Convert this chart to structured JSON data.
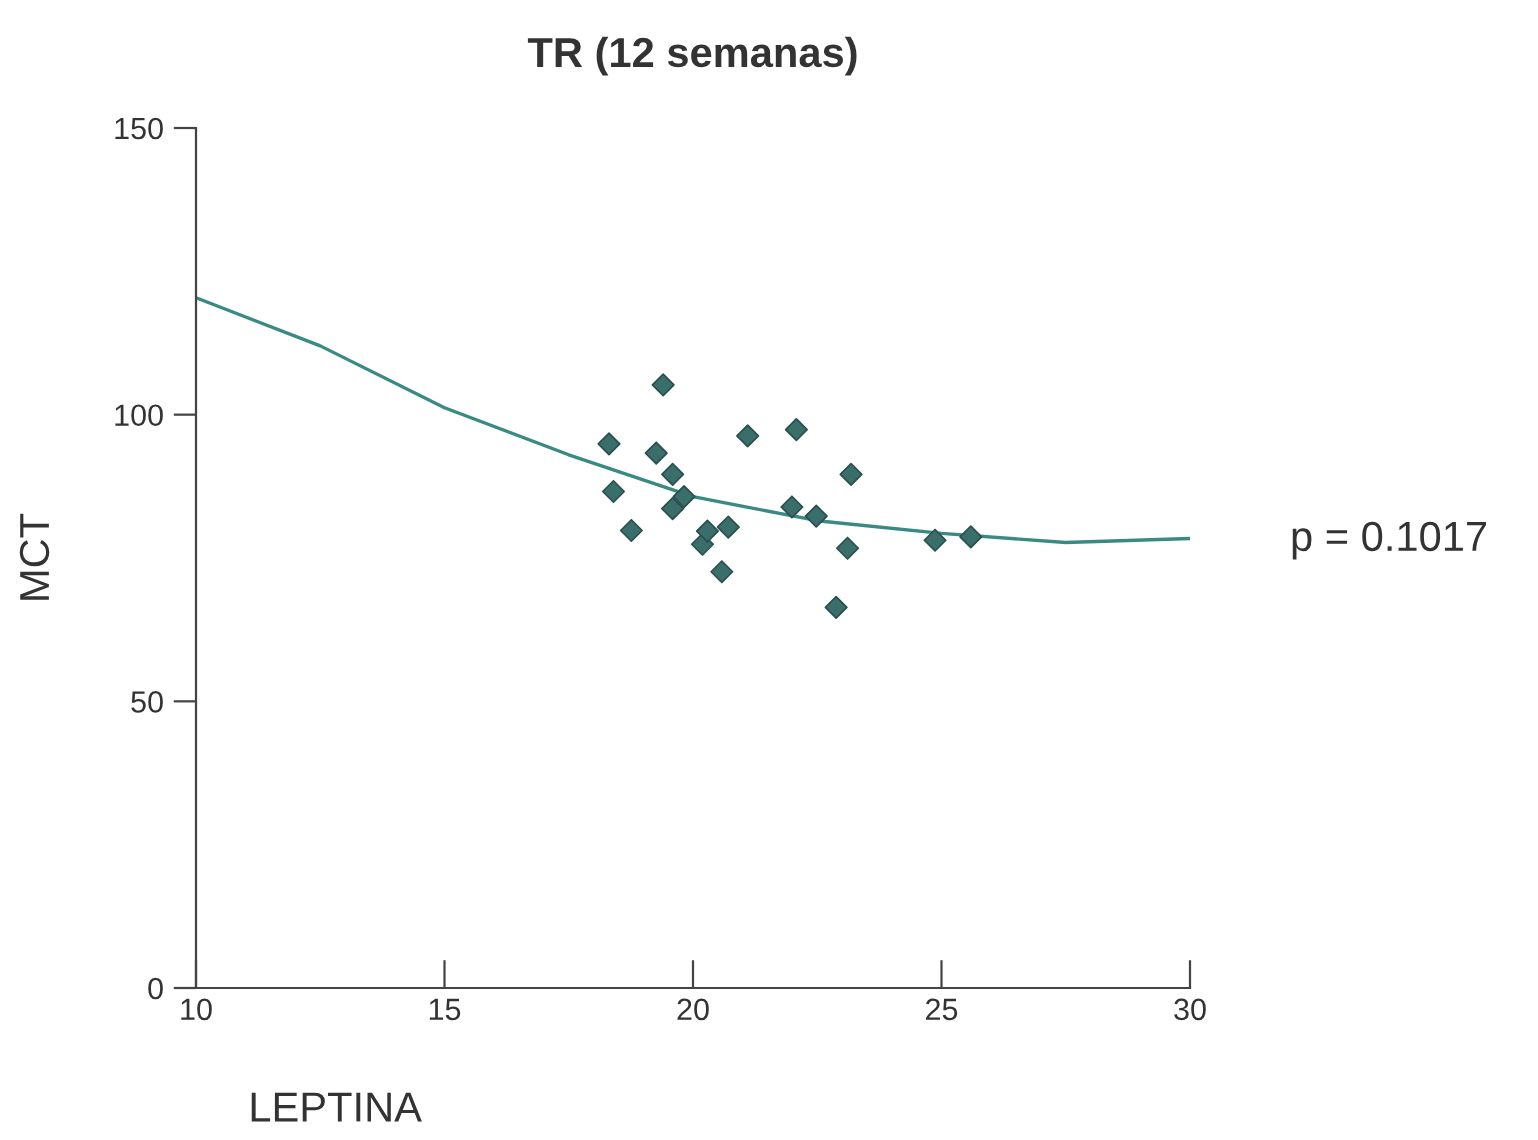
{
  "chart_data": {
    "type": "scatter",
    "title": "TR (12 semanas)",
    "xlabel": "LEPTINA",
    "ylabel": "MCT",
    "annotations": [
      "p = 0.1017"
    ],
    "xlim": [
      10,
      30
    ],
    "ylim": [
      0,
      150
    ],
    "xticks": [
      10,
      15,
      20,
      25,
      30
    ],
    "yticks": [
      0,
      50,
      100,
      150
    ],
    "grid": false,
    "marker": "diamond",
    "series": [
      {
        "color": "#3a6e6a",
        "x": [
          18.31,
          18.4,
          18.76,
          19.26,
          19.4,
          19.59,
          19.59,
          19.82,
          20.19,
          20.29,
          20.58,
          20.71,
          21.1,
          21.99,
          22.08,
          22.48,
          22.88,
          23.11,
          23.18,
          24.87,
          25.59
        ],
        "values": [
          94.9,
          86.6,
          79.8,
          93.3,
          105.2,
          89.6,
          83.6,
          85.7,
          77.4,
          79.7,
          72.6,
          80.4,
          96.3,
          83.9,
          97.4,
          82.3,
          66.4,
          76.7,
          89.6,
          78.1,
          78.7
        ]
      },
      {
        "type": "line",
        "color": "#3a8a84",
        "marker": "none",
        "x": [
          10,
          12.5,
          15,
          17.5,
          20,
          22.5,
          25,
          27.5,
          30
        ],
        "values": [
          120.4,
          112,
          101.2,
          93,
          85.7,
          81.5,
          79.3,
          77.7,
          78.4
        ]
      }
    ]
  }
}
